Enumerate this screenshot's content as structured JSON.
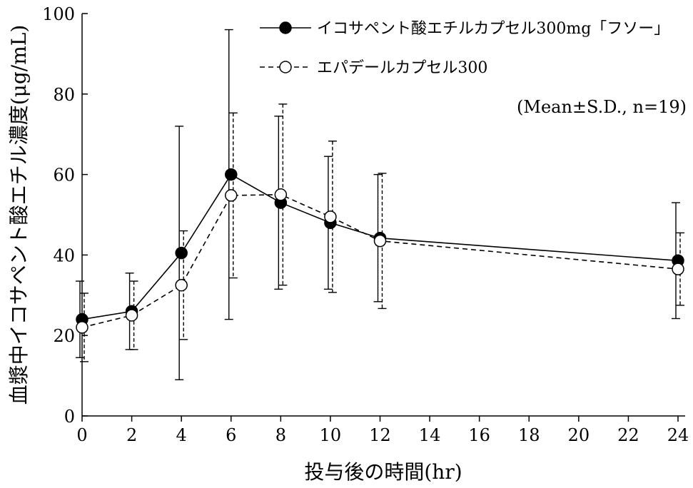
{
  "chart_data": {
    "type": "line",
    "title": "",
    "xlabel": "投与後の時間(hr)",
    "ylabel": "血漿中イコサペント酸エチル濃度(μg/mL)",
    "xlim": [
      0,
      24
    ],
    "ylim": [
      0,
      100
    ],
    "x_ticks": [
      "0",
      "2",
      "4",
      "6",
      "8",
      "10",
      "12",
      "14",
      "16",
      "18",
      "20",
      "22",
      "24"
    ],
    "y_ticks": [
      "0",
      "20",
      "40",
      "60",
      "80",
      "100"
    ],
    "annotation": "(Mean±S.D., n=19)",
    "legend_position": "top-right",
    "x": [
      0,
      2,
      4,
      6,
      8,
      10,
      12,
      24
    ],
    "series": [
      {
        "name": "イコサペント酸エチルカプセル300mg「フソー」",
        "marker": "filled-circle",
        "line": "solid",
        "values": [
          24,
          26,
          40.5,
          60,
          53,
          48,
          44.2,
          38.6
        ],
        "sd": [
          9.5,
          9.5,
          31.5,
          36,
          21.5,
          16.5,
          15.8,
          14.4
        ]
      },
      {
        "name": "エパデールカプセル300",
        "marker": "open-circle",
        "line": "dashed",
        "values": [
          22,
          25,
          32.5,
          54.8,
          55,
          49.5,
          43.5,
          36.5
        ],
        "sd": [
          8.5,
          8.5,
          13.5,
          20.5,
          22.5,
          18.8,
          16.8,
          9
        ]
      }
    ]
  }
}
